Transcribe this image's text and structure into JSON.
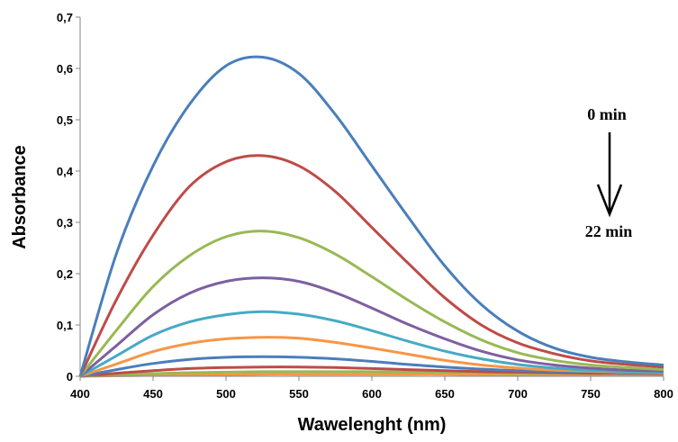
{
  "chart_data": {
    "type": "line",
    "title": "",
    "xlabel": "Wawelenght (nm)",
    "ylabel": "Absorbance",
    "xlim": [
      400,
      800
    ],
    "ylim": [
      0,
      0.7
    ],
    "x_ticks": [
      "400",
      "450",
      "500",
      "550",
      "600",
      "650",
      "700",
      "750",
      "800"
    ],
    "y_ticks": [
      "0",
      "0,1",
      "0,2",
      "0,3",
      "0,4",
      "0,5",
      "0,6",
      "0,7"
    ],
    "grid": false,
    "legend": "none",
    "x": [
      400,
      425,
      450,
      475,
      500,
      525,
      550,
      575,
      600,
      625,
      650,
      675,
      700,
      725,
      750,
      775,
      800
    ],
    "series": [
      {
        "color": "#4A7EBB",
        "values": [
          0.0,
          0.24,
          0.41,
          0.53,
          0.605,
          0.622,
          0.59,
          0.51,
          0.41,
          0.31,
          0.215,
          0.14,
          0.088,
          0.055,
          0.037,
          0.028,
          0.022
        ]
      },
      {
        "color": "#BE4B48",
        "values": [
          0.0,
          0.15,
          0.275,
          0.37,
          0.418,
          0.43,
          0.41,
          0.36,
          0.29,
          0.22,
          0.153,
          0.1,
          0.065,
          0.044,
          0.03,
          0.023,
          0.018
        ]
      },
      {
        "color": "#98B954",
        "values": [
          0.0,
          0.09,
          0.175,
          0.235,
          0.272,
          0.283,
          0.27,
          0.238,
          0.194,
          0.148,
          0.106,
          0.071,
          0.046,
          0.031,
          0.022,
          0.017,
          0.013
        ]
      },
      {
        "color": "#7D60A0",
        "values": [
          0.0,
          0.06,
          0.12,
          0.162,
          0.185,
          0.192,
          0.185,
          0.163,
          0.133,
          0.101,
          0.073,
          0.049,
          0.032,
          0.022,
          0.016,
          0.012,
          0.01
        ]
      },
      {
        "color": "#46AAC5",
        "values": [
          0.0,
          0.04,
          0.08,
          0.106,
          0.12,
          0.126,
          0.121,
          0.108,
          0.089,
          0.068,
          0.049,
          0.034,
          0.023,
          0.016,
          0.012,
          0.009,
          0.008
        ]
      },
      {
        "color": "#F79646",
        "values": [
          0.0,
          0.024,
          0.048,
          0.064,
          0.073,
          0.076,
          0.074,
          0.066,
          0.055,
          0.043,
          0.031,
          0.022,
          0.016,
          0.012,
          0.01,
          0.008,
          0.007
        ]
      },
      {
        "color": "#4A7EBB",
        "values": [
          0.0,
          0.013,
          0.025,
          0.033,
          0.037,
          0.038,
          0.037,
          0.034,
          0.029,
          0.023,
          0.018,
          0.014,
          0.011,
          0.009,
          0.008,
          0.007,
          0.006
        ]
      },
      {
        "color": "#BE4B48",
        "values": [
          0.0,
          0.006,
          0.011,
          0.015,
          0.017,
          0.018,
          0.018,
          0.017,
          0.015,
          0.013,
          0.011,
          0.009,
          0.008,
          0.007,
          0.006,
          0.006,
          0.005
        ]
      },
      {
        "color": "#98B954",
        "values": [
          0.0,
          0.003,
          0.005,
          0.007,
          0.008,
          0.009,
          0.009,
          0.009,
          0.009,
          0.008,
          0.008,
          0.007,
          0.006,
          0.006,
          0.005,
          0.005,
          0.005
        ]
      },
      {
        "color": "#F79646",
        "values": [
          0.0,
          0.001,
          0.002,
          0.003,
          0.003,
          0.004,
          0.004,
          0.004,
          0.004,
          0.004,
          0.004,
          0.003,
          0.003,
          0.003,
          0.003,
          0.003,
          0.003
        ]
      }
    ],
    "annotations": {
      "start_label": "0 min",
      "end_label": "22 min",
      "arrow": "down"
    }
  }
}
